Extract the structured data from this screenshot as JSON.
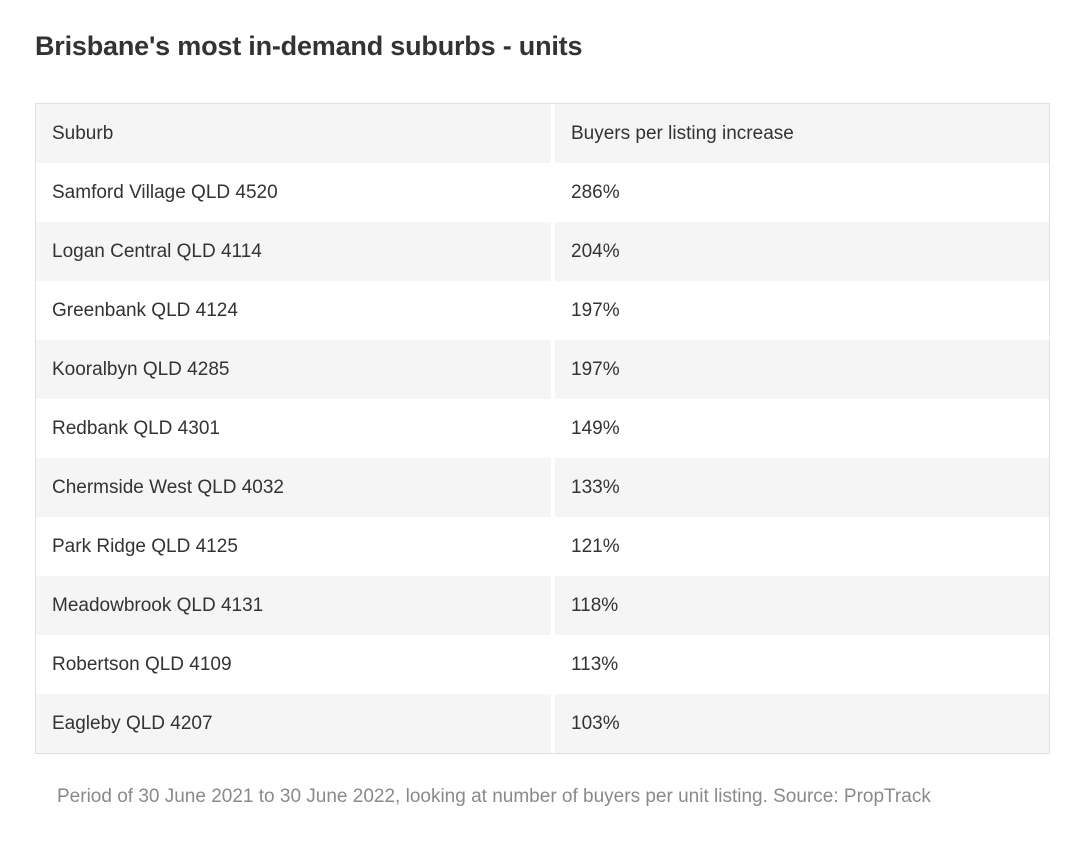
{
  "page_title": "Brisbane's most in-demand suburbs - units",
  "table": {
    "columns": [
      "Suburb",
      "Buyers per listing increase"
    ],
    "rows": [
      {
        "suburb": "Samford Village QLD 4520",
        "increase": "286%"
      },
      {
        "suburb": "Logan Central QLD 4114",
        "increase": "204%"
      },
      {
        "suburb": "Greenbank QLD 4124",
        "increase": "197%"
      },
      {
        "suburb": "Kooralbyn QLD 4285",
        "increase": "197%"
      },
      {
        "suburb": "Redbank QLD 4301",
        "increase": "149%"
      },
      {
        "suburb": "Chermside West QLD 4032",
        "increase": "133%"
      },
      {
        "suburb": "Park Ridge QLD 4125",
        "increase": "121%"
      },
      {
        "suburb": "Meadowbrook QLD 4131",
        "increase": "118%"
      },
      {
        "suburb": "Robertson QLD 4109",
        "increase": "113%"
      },
      {
        "suburb": "Eagleby QLD 4207",
        "increase": "103%"
      }
    ]
  },
  "caption": "Period of 30 June 2021 to 30 June 2022, looking at number of buyers per unit listing. Source: PropTrack",
  "colors": {
    "title_text": "#333333",
    "cell_text": "#333333",
    "caption_text": "#8a8a8a",
    "row_stripe": "#f5f5f5",
    "row_plain": "#ffffff",
    "table_border": "#e0e0e0",
    "column_divider": "#ffffff",
    "page_background": "#ffffff"
  },
  "chart_data": {
    "type": "table",
    "title": "Brisbane's most in-demand suburbs - units",
    "columns": [
      "Suburb",
      "Buyers per listing increase"
    ],
    "rows": [
      [
        "Samford Village QLD 4520",
        "286%"
      ],
      [
        "Logan Central QLD 4114",
        "204%"
      ],
      [
        "Greenbank QLD 4124",
        "197%"
      ],
      [
        "Kooralbyn QLD 4285",
        "197%"
      ],
      [
        "Redbank QLD 4301",
        "149%"
      ],
      [
        "Chermside West QLD 4032",
        "133%"
      ],
      [
        "Park Ridge QLD 4125",
        "121%"
      ],
      [
        "Meadowbrook QLD 4131",
        "118%"
      ],
      [
        "Robertson QLD 4109",
        "113%"
      ],
      [
        "Eagleby QLD 4207",
        "103%"
      ]
    ],
    "increase_percent_numeric": [
      286,
      204,
      197,
      197,
      149,
      133,
      121,
      118,
      113,
      103
    ],
    "annotations": "Period of 30 June 2021 to 30 June 2022, looking at number of buyers per unit listing. Source: PropTrack"
  }
}
